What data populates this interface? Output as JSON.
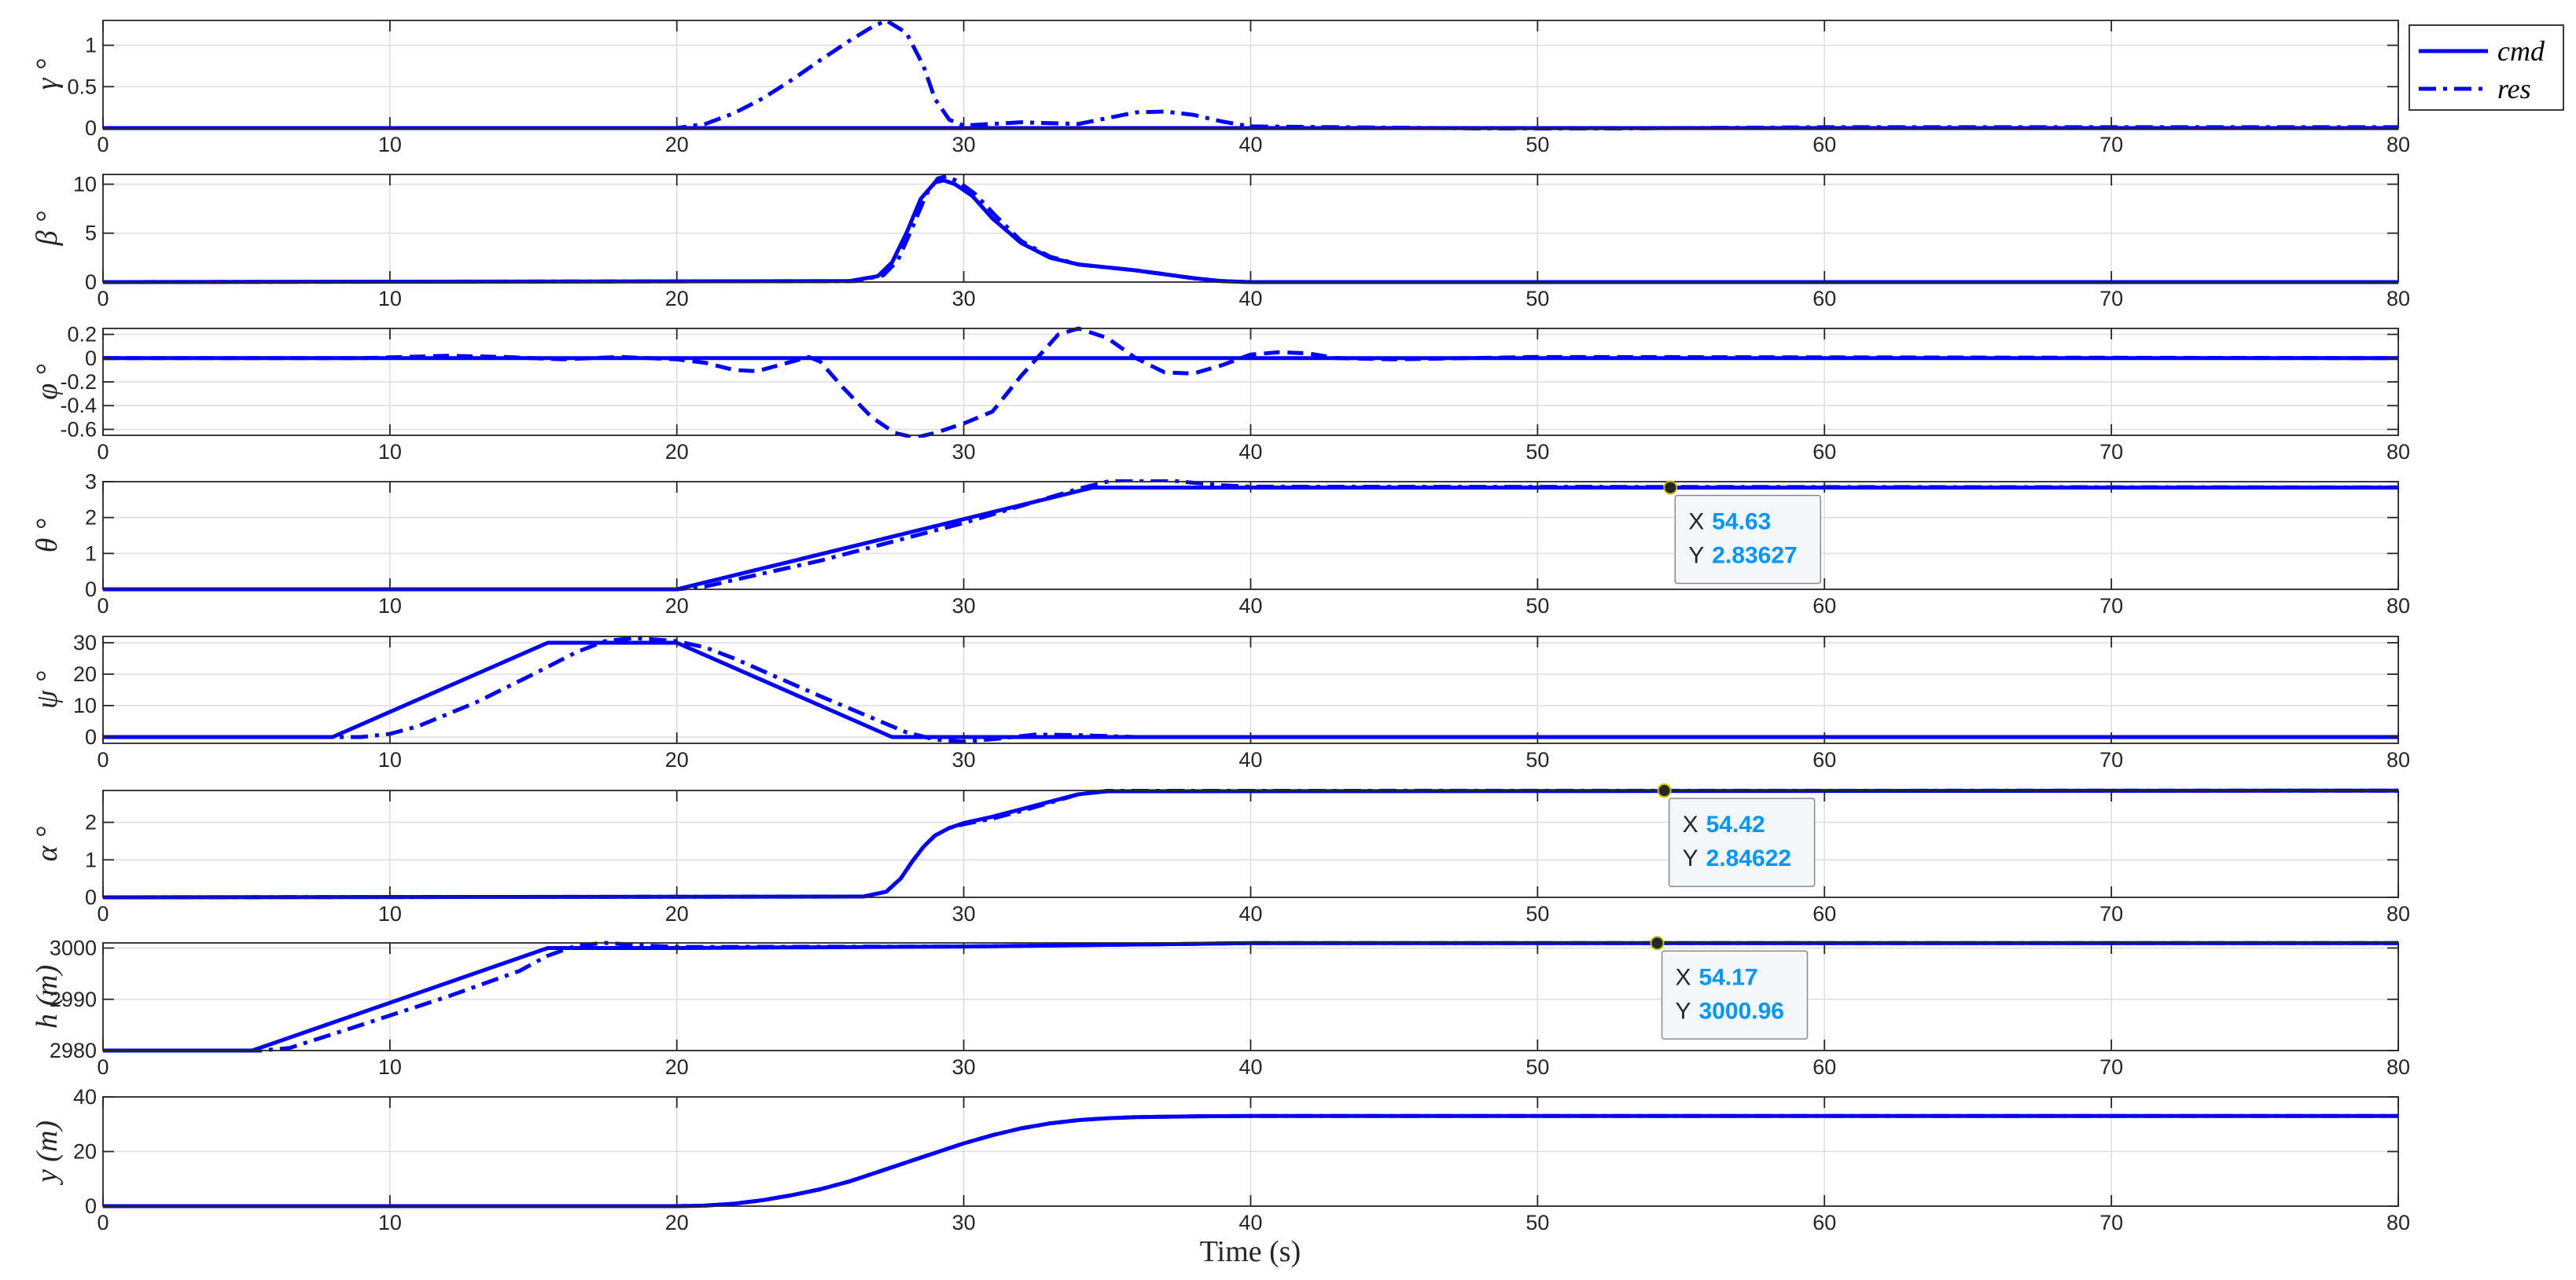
{
  "figure": {
    "xlabel": "Time (s)"
  },
  "chart_data": [
    {
      "type": "line",
      "ylabel": "γ °",
      "xlim": [
        0,
        80
      ],
      "ylim": [
        0,
        1.3
      ],
      "yticks": [
        0,
        0.5,
        1
      ],
      "ytick_labels": [
        "0",
        "0.5",
        "1"
      ],
      "xticks": [
        0,
        10,
        20,
        30,
        40,
        50,
        60,
        70,
        80
      ],
      "grid": true,
      "legend": {
        "position": "top-right",
        "entries": [
          "cmd",
          "res"
        ]
      },
      "series": [
        {
          "name": "cmd",
          "style": "solid",
          "x": [
            0,
            80
          ],
          "y": [
            0,
            0
          ]
        },
        {
          "name": "res",
          "style": "dashdot",
          "x": [
            0,
            20,
            21,
            22,
            23,
            24,
            25,
            26,
            26.8,
            27.3,
            28,
            28.6,
            29,
            29.5,
            30,
            31,
            32,
            33,
            34,
            35,
            36,
            37,
            38,
            39,
            40,
            50,
            60,
            70,
            80
          ],
          "y": [
            0,
            0,
            0.05,
            0.18,
            0.36,
            0.58,
            0.82,
            1.05,
            1.22,
            1.3,
            1.15,
            0.75,
            0.35,
            0.1,
            0.03,
            0.05,
            0.07,
            0.06,
            0.05,
            0.12,
            0.19,
            0.2,
            0.16,
            0.08,
            0.02,
            -0.01,
            0.01,
            0.01,
            0.01
          ]
        }
      ]
    },
    {
      "type": "line",
      "ylabel": "β °",
      "xlim": [
        0,
        80
      ],
      "ylim": [
        0,
        11
      ],
      "yticks": [
        0,
        5,
        10
      ],
      "ytick_labels": [
        "0",
        "5",
        "10"
      ],
      "xticks": [
        0,
        10,
        20,
        30,
        40,
        50,
        60,
        70,
        80
      ],
      "grid": true,
      "series": [
        {
          "name": "cmd",
          "style": "solid",
          "x": [
            0,
            26,
            27,
            27.5,
            28,
            28.5,
            29,
            29.3,
            29.7,
            30.3,
            31,
            32,
            33,
            34,
            35,
            36,
            37,
            38,
            39,
            40,
            41,
            80
          ],
          "y": [
            0,
            0.1,
            0.6,
            2,
            5,
            8.5,
            10.2,
            10.4,
            10,
            8.8,
            6.5,
            4,
            2.5,
            1.8,
            1.5,
            1.2,
            0.8,
            0.4,
            0.1,
            0,
            0,
            0
          ]
        },
        {
          "name": "res",
          "style": "dashdot",
          "x": [
            0,
            26.2,
            27.2,
            27.7,
            28.2,
            28.7,
            29.1,
            29.4,
            29.8,
            30.4,
            31.1,
            32,
            33,
            34,
            35,
            36,
            37,
            38,
            39,
            40,
            41,
            80
          ],
          "y": [
            0,
            0.1,
            0.7,
            2.2,
            5.5,
            9,
            10.6,
            10.8,
            10.3,
            9,
            6.8,
            4.2,
            2.6,
            1.8,
            1.5,
            1.2,
            0.8,
            0.4,
            0.1,
            0,
            0,
            0
          ]
        }
      ]
    },
    {
      "type": "line",
      "ylabel": "φ °",
      "xlim": [
        0,
        80
      ],
      "ylim": [
        -0.65,
        0.25
      ],
      "yticks": [
        -0.6,
        -0.4,
        -0.2,
        0,
        0.2
      ],
      "ytick_labels": [
        "-0.6",
        "-0.4",
        "-0.2",
        "0",
        "0.2"
      ],
      "xticks": [
        0,
        10,
        20,
        30,
        40,
        50,
        60,
        70,
        80
      ],
      "grid": true,
      "series": [
        {
          "name": "cmd",
          "style": "solid",
          "x": [
            0,
            80
          ],
          "y": [
            0,
            0
          ]
        },
        {
          "name": "res",
          "style": "dashed",
          "x": [
            0,
            9,
            12,
            14,
            16,
            18,
            20,
            21,
            22,
            22.8,
            24,
            24.6,
            25,
            25.8,
            26.8,
            27.6,
            28.3,
            29,
            30,
            31,
            32,
            33.3,
            34,
            35,
            36,
            37,
            38,
            39,
            40,
            41,
            42,
            43,
            45,
            50,
            80
          ],
          "y": [
            0,
            0,
            0.02,
            0.01,
            -0.01,
            0.01,
            -0.01,
            -0.04,
            -0.1,
            -0.11,
            -0.03,
            0.01,
            -0.03,
            -0.25,
            -0.5,
            -0.63,
            -0.67,
            -0.63,
            -0.55,
            -0.45,
            -0.15,
            0.2,
            0.25,
            0.17,
            0,
            -0.12,
            -0.13,
            -0.06,
            0.03,
            0.05,
            0.04,
            0,
            -0.01,
            0.01,
            0
          ]
        }
      ]
    },
    {
      "type": "line",
      "ylabel": "θ °",
      "xlim": [
        0,
        80
      ],
      "ylim": [
        0,
        3
      ],
      "yticks": [
        0,
        1,
        2,
        3
      ],
      "ytick_labels": [
        "0",
        "1",
        "2",
        "3"
      ],
      "xticks": [
        0,
        10,
        20,
        30,
        40,
        50,
        60,
        70,
        80
      ],
      "grid": true,
      "series": [
        {
          "name": "cmd",
          "style": "solid",
          "x": [
            0,
            20,
            34.5,
            80
          ],
          "y": [
            0,
            0,
            2.836,
            2.836
          ]
        },
        {
          "name": "res",
          "style": "dashdot",
          "x": [
            0,
            20,
            21,
            25,
            30,
            34,
            35,
            36,
            37,
            38,
            39,
            40,
            80
          ],
          "y": [
            0,
            0,
            0.08,
            0.8,
            1.85,
            2.8,
            3.0,
            3.08,
            3.05,
            2.97,
            2.9,
            2.86,
            2.84
          ]
        }
      ],
      "datatip": {
        "x": 54.63,
        "y": 2.83627,
        "x_text": "54.63",
        "y_text": "2.83627"
      }
    },
    {
      "type": "line",
      "ylabel": "ψ °",
      "xlim": [
        0,
        80
      ],
      "ylim": [
        -2,
        32
      ],
      "yticks": [
        0,
        10,
        20,
        30
      ],
      "ytick_labels": [
        "0",
        "10",
        "20",
        "30"
      ],
      "xticks": [
        0,
        10,
        20,
        30,
        40,
        50,
        60,
        70,
        80
      ],
      "grid": true,
      "series": [
        {
          "name": "cmd",
          "style": "solid",
          "x": [
            0,
            8,
            15.5,
            20,
            27.5,
            80
          ],
          "y": [
            0,
            0,
            30,
            30,
            0,
            0
          ]
        },
        {
          "name": "res",
          "style": "dashdot",
          "x": [
            0,
            9,
            10,
            11,
            13,
            15,
            16.5,
            17.5,
            18.5,
            20,
            21,
            22,
            25,
            28,
            29,
            30,
            31,
            32.5,
            34,
            36,
            80
          ],
          "y": [
            0,
            0,
            1,
            3.5,
            11,
            20,
            27,
            30.5,
            31.5,
            30.5,
            28.5,
            25,
            13,
            1.5,
            -0.8,
            -1.5,
            -0.7,
            0.8,
            0.6,
            0,
            0
          ]
        }
      ]
    },
    {
      "type": "line",
      "ylabel": "α °",
      "xlim": [
        0,
        80
      ],
      "ylim": [
        0,
        2.85
      ],
      "yticks": [
        0,
        1,
        2
      ],
      "ytick_labels": [
        "0",
        "1",
        "2"
      ],
      "xticks": [
        0,
        10,
        20,
        30,
        40,
        50,
        60,
        70,
        80
      ],
      "grid": true,
      "series": [
        {
          "name": "cmd",
          "style": "solid",
          "x": [
            0,
            26.5,
            27.3,
            27.8,
            28.2,
            28.6,
            29,
            29.5,
            30,
            31,
            32,
            33,
            34,
            35,
            80
          ],
          "y": [
            0,
            0.02,
            0.15,
            0.5,
            0.95,
            1.35,
            1.65,
            1.85,
            1.98,
            2.15,
            2.35,
            2.55,
            2.75,
            2.83,
            2.846
          ]
        },
        {
          "name": "res",
          "style": "dashdot",
          "x": [
            0,
            26.5,
            27.3,
            27.8,
            28.2,
            28.6,
            29,
            29.5,
            30,
            31,
            32,
            33,
            34,
            35,
            80
          ],
          "y": [
            0,
            0.02,
            0.15,
            0.5,
            0.95,
            1.35,
            1.65,
            1.85,
            1.95,
            2.1,
            2.3,
            2.52,
            2.75,
            2.84,
            2.846
          ]
        }
      ],
      "datatip": {
        "x": 54.42,
        "y": 2.84622,
        "x_text": "54.42",
        "y_text": "2.84622"
      }
    },
    {
      "type": "line",
      "ylabel": "h (m)",
      "xlim": [
        0,
        80
      ],
      "ylim": [
        2980,
        3001
      ],
      "yticks": [
        2980,
        2990,
        3000
      ],
      "ytick_labels": [
        "2980",
        "2990",
        "3000"
      ],
      "xticks": [
        0,
        10,
        20,
        30,
        40,
        50,
        60,
        70,
        80
      ],
      "grid": true,
      "series": [
        {
          "name": "cmd",
          "style": "solid",
          "x": [
            0,
            5.2,
            15.5,
            20,
            30,
            40,
            80
          ],
          "y": [
            2980,
            2980,
            3000,
            3000,
            3000.3,
            3000.96,
            3000.96
          ]
        },
        {
          "name": "res",
          "style": "dashdot",
          "x": [
            0,
            5.5,
            6.5,
            9,
            12,
            14.5,
            15.5,
            16.5,
            17.5,
            18.5,
            20,
            30,
            40,
            80
          ],
          "y": [
            2980,
            2980,
            2980.5,
            2985,
            2990.5,
            2995.5,
            2998.5,
            3000.5,
            3001,
            3000.6,
            3000.2,
            3000.3,
            3000.96,
            3000.96
          ]
        }
      ],
      "datatip": {
        "x": 54.17,
        "y": 3000.96,
        "x_text": "54.17",
        "y_text": "3000.96"
      }
    },
    {
      "type": "line",
      "ylabel": "y (m)",
      "xlim": [
        0,
        80
      ],
      "ylim": [
        0,
        40
      ],
      "yticks": [
        0,
        20,
        40
      ],
      "ytick_labels": [
        "0",
        "20",
        "40"
      ],
      "xticks": [
        0,
        10,
        20,
        30,
        40,
        50,
        60,
        70,
        80
      ],
      "grid": true,
      "series": [
        {
          "name": "cmd",
          "style": "solid",
          "x": [
            0,
            20,
            21,
            22,
            23,
            24,
            25,
            26,
            27,
            28,
            29,
            30,
            31,
            32,
            33,
            34,
            35,
            36,
            38,
            40,
            80
          ],
          "y": [
            0,
            0,
            0.2,
            0.9,
            2.2,
            4,
            6.2,
            9,
            12.5,
            16,
            19.5,
            23,
            26,
            28.5,
            30.3,
            31.5,
            32.2,
            32.6,
            32.9,
            33,
            33
          ]
        },
        {
          "name": "res",
          "style": "dashdot",
          "x": [
            0,
            20,
            21,
            22,
            23,
            24,
            25,
            26,
            27,
            28,
            29,
            30,
            31,
            32,
            33,
            34,
            35,
            36,
            38,
            40,
            80
          ],
          "y": [
            0,
            0,
            0.2,
            0.9,
            2.2,
            4,
            6.2,
            9,
            12.5,
            16,
            19.5,
            23,
            26,
            28.5,
            30.3,
            31.5,
            32.2,
            32.6,
            32.9,
            33,
            33
          ]
        }
      ]
    }
  ]
}
